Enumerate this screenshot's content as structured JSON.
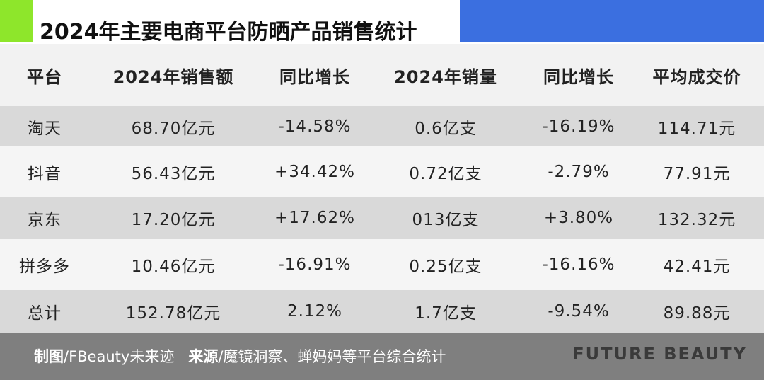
{
  "header": {
    "title": "2024年主要电商平台防晒产品销售统计"
  },
  "table": {
    "columns": [
      "平台",
      "2024年销售额",
      "同比增长",
      "2024年销量",
      "同比增长",
      "平均成交价"
    ],
    "rows": [
      [
        "淘天",
        "68.70亿元",
        "-14.58%",
        "0.6亿支",
        "-16.19%",
        "114.71元"
      ],
      [
        "抖音",
        "56.43亿元",
        "+34.42%",
        "0.72亿支",
        "-2.79%",
        "77.91元"
      ],
      [
        "京东",
        "17.20亿元",
        "+17.62%",
        "013亿支",
        "+3.80%",
        "132.32元"
      ],
      [
        "拼多多",
        "10.46亿元",
        "-16.91%",
        "0.25亿支",
        "-16.16%",
        "42.41元"
      ],
      [
        "总计",
        "152.78亿元",
        "2.12%",
        "1.7亿支",
        "-9.54%",
        "89.88元"
      ]
    ]
  },
  "footer": {
    "credit_label": "制图",
    "credit": "/FBeauty未来迹",
    "source_label": "来源",
    "source": "/魔镜洞察、蝉妈妈等平台综合统计",
    "brand": "FUTURE BEAUTY"
  }
}
